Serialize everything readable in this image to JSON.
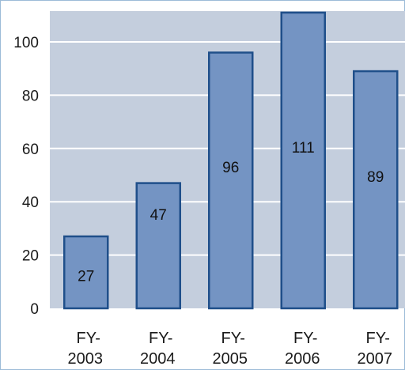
{
  "chart_data": {
    "type": "bar",
    "categories": [
      [
        "FY-",
        "2003"
      ],
      [
        "FY-",
        "2004"
      ],
      [
        "FY-",
        "2005"
      ],
      [
        "FY-",
        "2006"
      ],
      [
        "FY-",
        "2007"
      ]
    ],
    "values": [
      27,
      47,
      96,
      111,
      89
    ],
    "data_labels": [
      "27",
      "47",
      "96",
      "111",
      "89"
    ],
    "yticks": [
      0,
      20,
      40,
      60,
      80,
      100
    ],
    "ylim": [
      0,
      111
    ],
    "grid": true,
    "legend": "none",
    "title": "",
    "xlabel": "",
    "ylabel": "",
    "colors": {
      "plot_background": "#c4cedd",
      "bar_fill": "#7494c3",
      "bar_stroke": "#1f4f8a",
      "gridline": "#ffffff",
      "frame": "#9cbbd8"
    }
  }
}
